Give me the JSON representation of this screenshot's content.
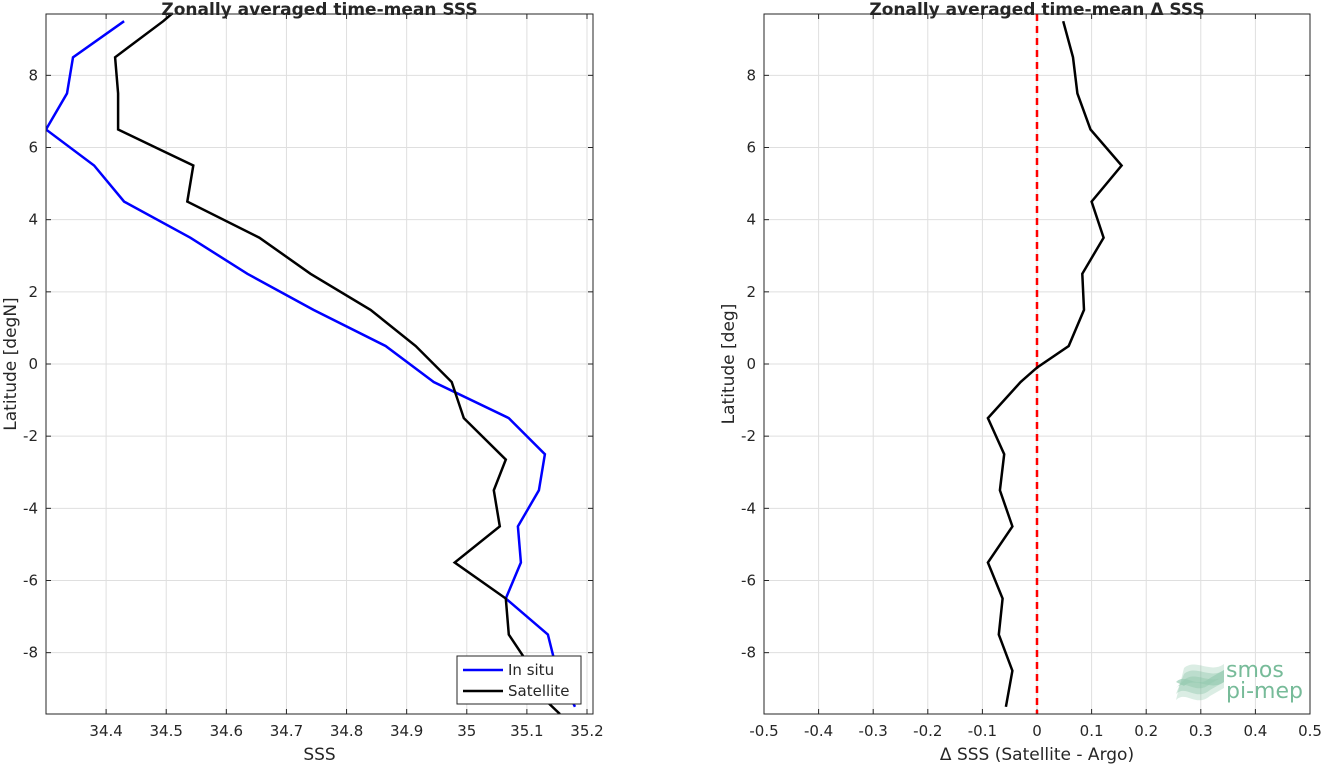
{
  "chart_data": [
    {
      "type": "line",
      "title": "Zonally averaged time-mean SSS",
      "xlabel": "SSS",
      "ylabel": "Latitude [degN]",
      "xlim": [
        34.3,
        35.21
      ],
      "ylim": [
        -9.7,
        9.7
      ],
      "x_ticks": [
        "34.4",
        "34.5",
        "34.6",
        "34.7",
        "34.8",
        "34.9",
        "35",
        "35.1",
        "35.2"
      ],
      "y_ticks": [
        "-8",
        "-6",
        "-4",
        "-2",
        "0",
        "2",
        "4",
        "6",
        "8"
      ],
      "grid": true,
      "legend_position": "bottom-right",
      "series": [
        {
          "name": "In situ",
          "color": "#0000ff",
          "points": [
            [
              34.43,
              9.5
            ],
            [
              34.345,
              8.5
            ],
            [
              34.335,
              7.5
            ],
            [
              34.3,
              6.5
            ],
            [
              34.38,
              5.5
            ],
            [
              34.43,
              4.5
            ],
            [
              34.54,
              3.5
            ],
            [
              34.635,
              2.5
            ],
            [
              34.745,
              1.5
            ],
            [
              34.865,
              0.5
            ],
            [
              34.945,
              -0.5
            ],
            [
              35.07,
              -1.5
            ],
            [
              35.13,
              -2.5
            ],
            [
              35.12,
              -3.5
            ],
            [
              35.085,
              -4.5
            ],
            [
              35.09,
              -5.5
            ],
            [
              35.065,
              -6.5
            ],
            [
              35.135,
              -7.5
            ],
            [
              35.15,
              -8.5
            ],
            [
              35.18,
              -9.5
            ]
          ]
        },
        {
          "name": "Satellite",
          "color": "#000000",
          "points": [
            [
              34.53,
              10.0
            ],
            [
              34.495,
              9.5
            ],
            [
              34.415,
              8.5
            ],
            [
              34.42,
              7.5
            ],
            [
              34.42,
              6.5
            ],
            [
              34.495,
              5.9
            ],
            [
              34.545,
              5.5
            ],
            [
              34.535,
              4.5
            ],
            [
              34.655,
              3.5
            ],
            [
              34.74,
              2.5
            ],
            [
              34.84,
              1.5
            ],
            [
              34.915,
              0.5
            ],
            [
              34.975,
              -0.5
            ],
            [
              34.995,
              -1.5
            ],
            [
              35.065,
              -2.65
            ],
            [
              35.045,
              -3.5
            ],
            [
              35.055,
              -4.5
            ],
            [
              34.98,
              -5.5
            ],
            [
              35.065,
              -6.5
            ],
            [
              35.07,
              -7.5
            ],
            [
              35.11,
              -8.5
            ],
            [
              35.13,
              -9.3
            ],
            [
              35.155,
              -9.7
            ]
          ]
        }
      ]
    },
    {
      "type": "line",
      "title": "Zonally averaged time-mean Δ SSS",
      "xlabel": "Δ SSS (Satellite - Argo)",
      "ylabel": "Latitude [deg]",
      "xlim": [
        -0.5,
        0.5
      ],
      "ylim": [
        -9.7,
        9.7
      ],
      "x_ticks": [
        "-0.5",
        "-0.4",
        "-0.3",
        "-0.2",
        "-0.1",
        "0",
        "0.1",
        "0.2",
        "0.3",
        "0.4",
        "0.5"
      ],
      "y_ticks": [
        "-8",
        "-6",
        "-4",
        "-2",
        "0",
        "2",
        "4",
        "6",
        "8"
      ],
      "grid": true,
      "reference_line": {
        "x": 0,
        "color": "#ff0000",
        "style": "dashed"
      },
      "series": [
        {
          "name": "",
          "color": "#000000",
          "points": [
            [
              0.048,
              9.5
            ],
            [
              0.066,
              8.5
            ],
            [
              0.074,
              7.5
            ],
            [
              0.098,
              6.5
            ],
            [
              0.155,
              5.5
            ],
            [
              0.1,
              4.5
            ],
            [
              0.122,
              3.5
            ],
            [
              0.083,
              2.5
            ],
            [
              0.086,
              1.5
            ],
            [
              0.058,
              0.5
            ],
            [
              0.0,
              -0.1
            ],
            [
              -0.03,
              -0.5
            ],
            [
              -0.09,
              -1.5
            ],
            [
              -0.06,
              -2.5
            ],
            [
              -0.068,
              -3.5
            ],
            [
              -0.045,
              -4.5
            ],
            [
              -0.09,
              -5.5
            ],
            [
              -0.063,
              -6.5
            ],
            [
              -0.07,
              -7.5
            ],
            [
              -0.045,
              -8.5
            ],
            [
              -0.057,
              -9.5
            ]
          ]
        }
      ]
    }
  ],
  "watermark": {
    "line1": "smos",
    "line2": "pi-mep",
    "color": "#77bb99"
  }
}
